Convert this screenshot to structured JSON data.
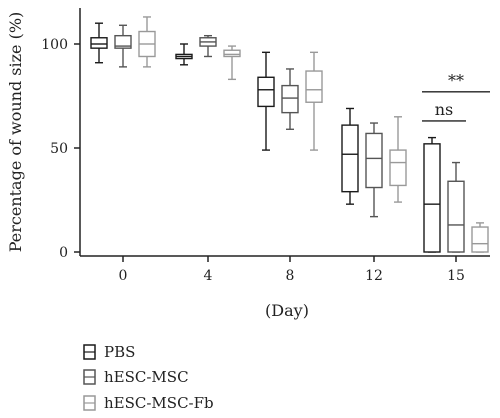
{
  "chart_data": {
    "type": "boxplot",
    "title": "",
    "xlabel": "(Day)",
    "ylabel": "Percentage of wound size (%)",
    "ylim": [
      0,
      120
    ],
    "yticks": [
      0,
      50,
      100
    ],
    "categories": [
      "0",
      "4",
      "8",
      "12",
      "15"
    ],
    "legend_position": "bottom-left",
    "series": [
      {
        "name": "PBS",
        "color": "#1a1a1a",
        "boxes": [
          {
            "min": 91,
            "q1": 98,
            "median": 100,
            "q3": 103,
            "max": 110
          },
          {
            "min": 90,
            "q1": 93,
            "median": 94,
            "q3": 95,
            "max": 100
          },
          {
            "min": 49,
            "q1": 70,
            "median": 78,
            "q3": 84,
            "max": 96
          },
          {
            "min": 23,
            "q1": 29,
            "median": 47,
            "q3": 61,
            "max": 69
          },
          {
            "min": 0,
            "q1": 0,
            "median": 23,
            "q3": 52,
            "max": 55
          }
        ]
      },
      {
        "name": "hESC-MSC",
        "color": "#555555",
        "boxes": [
          {
            "min": 89,
            "q1": 98,
            "median": 99,
            "q3": 104,
            "max": 109
          },
          {
            "min": 94,
            "q1": 99,
            "median": 101,
            "q3": 103,
            "max": 104
          },
          {
            "min": 59,
            "q1": 67,
            "median": 74,
            "q3": 80,
            "max": 88
          },
          {
            "min": 17,
            "q1": 31,
            "median": 45,
            "q3": 57,
            "max": 62
          },
          {
            "min": 0,
            "q1": 0,
            "median": 13,
            "q3": 34,
            "max": 43
          }
        ]
      },
      {
        "name": "hESC-MSC-Fb",
        "color": "#999999",
        "boxes": [
          {
            "min": 89,
            "q1": 94,
            "median": 100,
            "q3": 106,
            "max": 113
          },
          {
            "min": 83,
            "q1": 94,
            "median": 95,
            "q3": 97,
            "max": 99
          },
          {
            "min": 49,
            "q1": 72,
            "median": 78,
            "q3": 87,
            "max": 96
          },
          {
            "min": 24,
            "q1": 32,
            "median": 43,
            "q3": 49,
            "max": 65
          },
          {
            "min": 0,
            "q1": 0,
            "median": 4,
            "q3": 12,
            "max": 14
          }
        ]
      }
    ],
    "annotations": [
      {
        "text": "ns",
        "category": "15",
        "from_series": 0,
        "to_series": 1,
        "level": 63
      },
      {
        "text": "**",
        "category": "15",
        "from_series": 0,
        "to_series": 2,
        "level": 77
      }
    ]
  }
}
